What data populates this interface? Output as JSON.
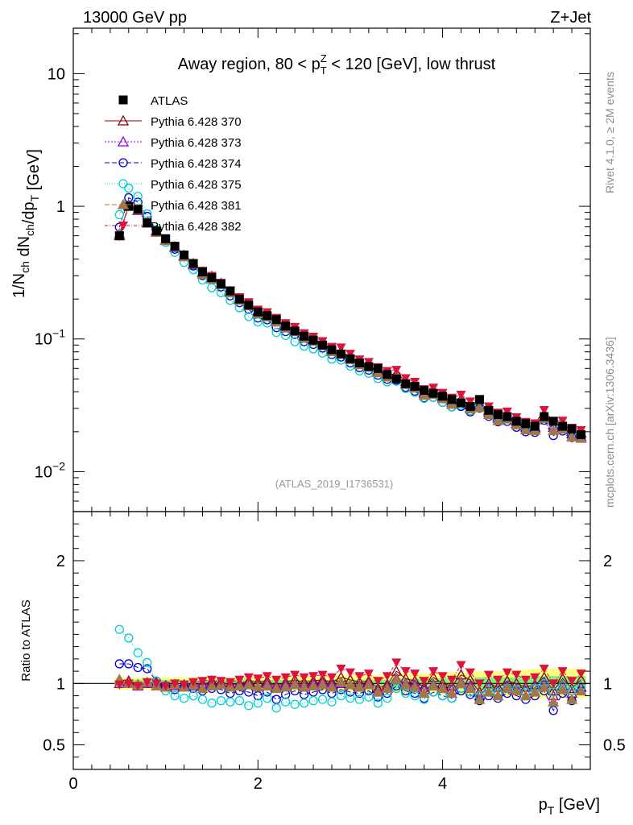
{
  "header": {
    "left": "13000 GeV pp",
    "right": "Z+Jet"
  },
  "side": {
    "top": "Rivet 4.1.0, ≥ 2M events",
    "bottom": "mcplots.cern.ch [arXiv:1306.3436]"
  },
  "watermark": "(ATLAS_2019_I1736531)",
  "chart_data": {
    "type": "scatter",
    "title": "Away region, 80 < p_T^Z < 120 [GeV], low thrust",
    "xlabel": "p_T [GeV]",
    "ylabel": "1/N_ch dN_ch/dp_T [GeV]",
    "ratio_ylabel": "Ratio to ATLAS",
    "xlim": [
      0,
      5.6
    ],
    "ylim": [
      0.005,
      22
    ],
    "ylog": true,
    "ratio_ylim": [
      0.3,
      2.4
    ],
    "x_ticks": [
      "0",
      "2",
      "4"
    ],
    "y_ticks": [
      "10^-2",
      "10^-1",
      "1",
      "10"
    ],
    "ratio_ticks": [
      "0.5",
      "1",
      "2"
    ],
    "x": [
      0.5,
      0.6,
      0.7,
      0.8,
      0.9,
      1.0,
      1.1,
      1.2,
      1.3,
      1.4,
      1.5,
      1.6,
      1.7,
      1.8,
      1.9,
      2.0,
      2.1,
      2.2,
      2.3,
      2.4,
      2.5,
      2.6,
      2.7,
      2.8,
      2.9,
      3.0,
      3.1,
      3.2,
      3.3,
      3.4,
      3.5,
      3.6,
      3.7,
      3.8,
      3.9,
      4.0,
      4.1,
      4.2,
      4.3,
      4.4,
      4.5,
      4.6,
      4.7,
      4.8,
      4.9,
      5.0,
      5.1,
      5.2,
      5.3,
      5.4,
      5.5
    ],
    "data": {
      "name": "ATLAS",
      "values": [
        0.6,
        1.0,
        0.95,
        0.75,
        0.65,
        0.57,
        0.5,
        0.43,
        0.37,
        0.32,
        0.29,
        0.26,
        0.23,
        0.2,
        0.18,
        0.16,
        0.15,
        0.14,
        0.125,
        0.115,
        0.105,
        0.098,
        0.09,
        0.083,
        0.077,
        0.071,
        0.066,
        0.062,
        0.06,
        0.054,
        0.05,
        0.046,
        0.044,
        0.041,
        0.039,
        0.037,
        0.035,
        0.033,
        0.031,
        0.035,
        0.029,
        0.027,
        0.026,
        0.024,
        0.023,
        0.022,
        0.026,
        0.024,
        0.022,
        0.021,
        0.019
      ]
    },
    "band_inner": [
      0.03,
      0.03,
      0.03,
      0.03,
      0.03,
      0.03,
      0.03,
      0.03,
      0.03,
      0.03,
      0.03,
      0.03,
      0.03,
      0.03,
      0.03,
      0.03,
      0.03,
      0.03,
      0.03,
      0.03,
      0.03,
      0.03,
      0.03,
      0.03,
      0.03,
      0.03,
      0.03,
      0.03,
      0.03,
      0.03,
      0.04,
      0.04,
      0.04,
      0.04,
      0.04,
      0.04,
      0.04,
      0.04,
      0.04,
      0.05,
      0.05,
      0.05,
      0.05,
      0.05,
      0.05,
      0.06,
      0.06,
      0.06,
      0.06,
      0.06,
      0.06
    ],
    "band_outer": [
      0.05,
      0.05,
      0.05,
      0.05,
      0.05,
      0.05,
      0.05,
      0.05,
      0.05,
      0.05,
      0.05,
      0.05,
      0.05,
      0.05,
      0.05,
      0.06,
      0.06,
      0.06,
      0.06,
      0.06,
      0.06,
      0.06,
      0.06,
      0.06,
      0.07,
      0.07,
      0.07,
      0.07,
      0.07,
      0.07,
      0.08,
      0.08,
      0.08,
      0.08,
      0.08,
      0.09,
      0.09,
      0.09,
      0.09,
      0.1,
      0.1,
      0.1,
      0.1,
      0.11,
      0.11,
      0.12,
      0.12,
      0.12,
      0.12,
      0.12,
      0.12
    ],
    "series": [
      {
        "name": "Pythia 6.428 370",
        "color": "#8b0000",
        "marker": "triangle-open",
        "dash": "",
        "ratio": [
          1.03,
          1.02,
          0.99,
          1.0,
          1.01,
          0.98,
          0.99,
          0.98,
          1.0,
          0.99,
          1.02,
          1.01,
          0.99,
          1.0,
          1.02,
          1.01,
          1.02,
          0.98,
          1.01,
          1.03,
          1.01,
          1.02,
          1.03,
          1.01,
          1.05,
          1.03,
          1.01,
          1.02,
          0.96,
          0.99,
          1.1,
          1.04,
          1.02,
          0.97,
          1.05,
          1.0,
          0.98,
          1.07,
          1.03,
          0.93,
          1.0,
          0.97,
          1.02,
          1.0,
          0.97,
          0.99,
          1.05,
          0.94,
          1.04,
          0.96,
          1.03
        ]
      },
      {
        "name": "Pythia 6.428 373",
        "color": "#9400d3",
        "marker": "triangle-open",
        "dash": "2,2",
        "ratio": [
          1.0,
          1.01,
          0.98,
          1.0,
          1.0,
          0.97,
          0.98,
          0.99,
          0.98,
          1.0,
          0.99,
          1.0,
          0.98,
          0.99,
          1.0,
          0.97,
          1.0,
          0.97,
          0.99,
          1.0,
          0.98,
          1.0,
          1.01,
          0.99,
          1.0,
          0.99,
          0.98,
          1.0,
          0.94,
          0.97,
          1.04,
          1.0,
          0.99,
          0.95,
          0.99,
          0.97,
          0.95,
          1.01,
          0.98,
          0.9,
          0.97,
          0.94,
          0.98,
          0.96,
          0.94,
          0.97,
          1.0,
          0.9,
          0.98,
          0.92,
          0.97
        ]
      },
      {
        "name": "Pythia 6.428 374",
        "color": "#0000cd",
        "marker": "circle-open",
        "dash": "6,3",
        "ratio": [
          1.16,
          1.16,
          1.13,
          1.12,
          1.02,
          0.98,
          0.95,
          0.97,
          0.96,
          0.94,
          0.96,
          0.95,
          0.92,
          0.94,
          0.93,
          0.9,
          0.93,
          0.87,
          0.91,
          0.94,
          0.91,
          0.93,
          0.95,
          0.92,
          0.95,
          0.93,
          0.92,
          0.94,
          0.89,
          0.92,
          0.98,
          0.94,
          0.92,
          0.88,
          0.93,
          0.9,
          0.88,
          0.94,
          0.91,
          0.86,
          0.9,
          0.88,
          0.92,
          0.9,
          0.87,
          0.9,
          0.94,
          0.78,
          0.92,
          0.86,
          0.94
        ]
      },
      {
        "name": "Pythia 6.428 375",
        "color": "#00ced1",
        "marker": "circle-open",
        "dash": "1,2",
        "ratio": [
          1.44,
          1.37,
          1.25,
          1.17,
          1.02,
          0.94,
          0.9,
          0.88,
          0.9,
          0.87,
          0.84,
          0.86,
          0.85,
          0.86,
          0.82,
          0.84,
          0.88,
          0.8,
          0.85,
          0.83,
          0.84,
          0.86,
          0.87,
          0.85,
          0.9,
          0.88,
          0.87,
          0.89,
          0.84,
          0.88,
          0.96,
          0.92,
          0.9,
          0.87,
          0.93,
          0.9,
          0.88,
          0.96,
          0.93,
          0.9,
          0.95,
          0.92,
          0.96,
          0.95,
          0.93,
          0.96,
          1.0,
          0.93,
          0.98,
          0.94,
          0.97
        ]
      },
      {
        "name": "Pythia 6.428 381",
        "color": "#a0784a",
        "marker": "triangle-filled",
        "dash": "6,3",
        "ratio": [
          1.03,
          1.0,
          0.99,
          1.01,
          0.98,
          0.97,
          0.99,
          0.97,
          0.99,
          0.96,
          0.98,
          0.99,
          0.97,
          0.98,
          0.99,
          0.97,
          0.98,
          0.96,
          0.97,
          0.99,
          0.97,
          0.98,
          0.99,
          0.97,
          1.01,
          0.99,
          0.97,
          0.99,
          0.93,
          0.96,
          1.03,
          0.99,
          0.97,
          0.92,
          0.98,
          0.96,
          0.92,
          1.0,
          0.96,
          0.87,
          0.93,
          0.9,
          0.96,
          0.94,
          0.9,
          0.93,
          0.97,
          0.85,
          0.95,
          0.87,
          0.94
        ]
      },
      {
        "name": "Pythia 6.428 382",
        "color": "#dc143c",
        "marker": "triangle-down",
        "dash": "4,2,1,2",
        "ratio": [
          0.99,
          1.0,
          0.98,
          1.01,
          1.0,
          0.98,
          1.0,
          0.99,
          1.01,
          1.02,
          1.03,
          1.02,
          1.01,
          1.03,
          1.05,
          1.04,
          1.06,
          1.03,
          1.05,
          1.07,
          1.05,
          1.06,
          1.07,
          1.05,
          1.12,
          1.09,
          1.06,
          1.08,
          1.02,
          1.06,
          1.17,
          1.1,
          1.08,
          1.02,
          1.1,
          1.06,
          1.03,
          1.15,
          1.09,
          1.0,
          1.07,
          1.03,
          1.09,
          1.07,
          1.03,
          1.05,
          1.12,
          1.0,
          1.1,
          1.02,
          1.08
        ]
      }
    ]
  }
}
